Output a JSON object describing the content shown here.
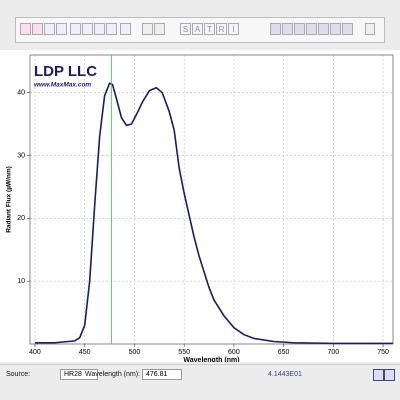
{
  "chart_data": {
    "type": "line",
    "annotations": [
      "LDP LLC",
      "www.MaxMax.com"
    ],
    "xlabel": "Wavelength (nm)",
    "ylabel": "Radiant Flux (µW/nm)",
    "x": [
      400,
      420,
      440,
      445,
      450,
      455,
      460,
      465,
      470,
      475,
      478,
      482,
      487,
      492,
      497,
      502,
      508,
      515,
      522,
      528,
      535,
      540,
      545,
      550,
      555,
      560,
      565,
      570,
      575,
      580,
      590,
      600,
      610,
      620,
      640,
      660,
      700,
      750,
      760
    ],
    "series": [
      {
        "color": "#1a1a6e",
        "values": [
          0.2,
          0.2,
          0.5,
          1,
          3,
          10,
          22,
          33,
          39.5,
          41.5,
          41.3,
          39,
          36,
          34.8,
          35,
          36.5,
          38.5,
          40.3,
          40.8,
          40,
          37,
          34,
          28,
          24,
          20.5,
          17,
          14,
          11.5,
          9,
          7,
          4.5,
          2.6,
          1.5,
          0.9,
          0.4,
          0.2,
          0.1,
          0.1,
          0.1
        ]
      }
    ],
    "xlim": [
      395,
      760
    ],
    "ylim": [
      0,
      46
    ],
    "xticks": [
      400,
      450,
      500,
      550,
      600,
      650,
      700,
      750
    ],
    "yticks": [
      10,
      20,
      30,
      40
    ],
    "grid": true,
    "cursor_color": "#33cc33"
  },
  "toolbar": {
    "mode_buttons": [
      "S",
      "A",
      "T",
      "R",
      "I"
    ]
  },
  "status_bar": {
    "source_label": "Source:",
    "source_value": "HR28",
    "wavelength_label": "Wavelength (nm):",
    "wavelength_value": 476.81,
    "flux_value": "4.1443E01"
  }
}
